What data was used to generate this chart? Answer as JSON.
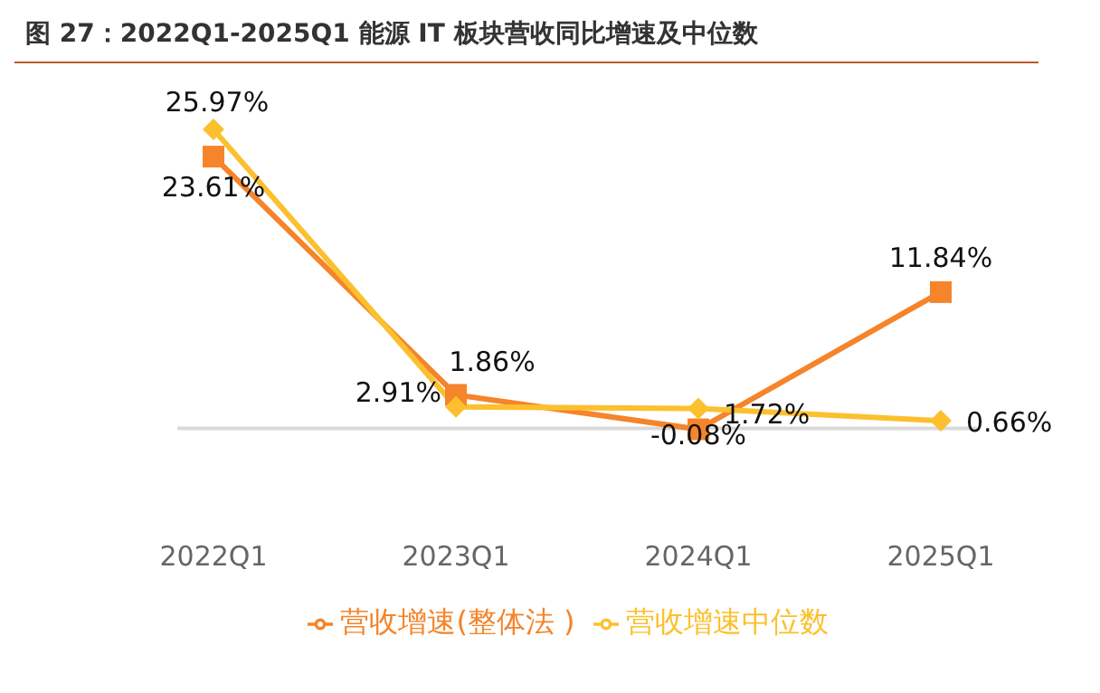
{
  "chart_data": {
    "type": "line",
    "title": "图 27：2022Q1-2025Q1 能源 IT 板块营收同比增速及中位数",
    "categories": [
      "2022Q1",
      "2023Q1",
      "2024Q1",
      "2025Q1"
    ],
    "series": [
      {
        "name": "营收增速(整体法 )",
        "color": "#f5842a",
        "marker": "square",
        "values": [
          23.61,
          2.91,
          -0.08,
          11.84
        ],
        "value_labels": [
          "23.61%",
          "2.91%",
          "-0.08%",
          "11.84%"
        ]
      },
      {
        "name": "营收增速中位数",
        "color": "#fcc02e",
        "marker": "diamond",
        "values": [
          25.97,
          1.86,
          1.72,
          0.66
        ],
        "value_labels": [
          "25.97%",
          "1.86%",
          "1.72%",
          "0.66%"
        ]
      }
    ],
    "relative": false,
    "ref_lines": [
      {
        "axis": "y",
        "value": 0,
        "color": "#d9d9d9"
      }
    ],
    "legend": "bottom"
  }
}
